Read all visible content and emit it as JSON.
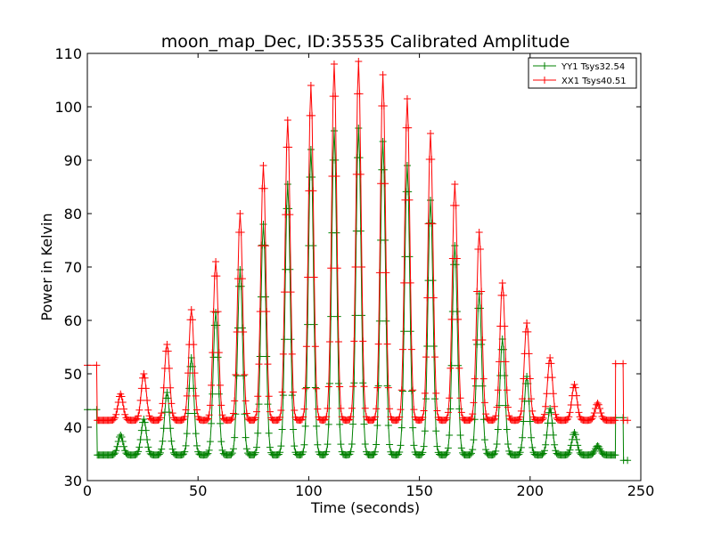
{
  "chart_data": {
    "type": "line",
    "title": "moon_map_Dec, ID:35535 Calibrated Amplitude",
    "xlabel": "Time (seconds)",
    "ylabel": "Power in Kelvin",
    "xlim": [
      0,
      250
    ],
    "ylim": [
      30,
      110
    ],
    "xticks": [
      "0",
      "50",
      "100",
      "150",
      "200",
      "250"
    ],
    "yticks": [
      "30",
      "40",
      "50",
      "60",
      "70",
      "80",
      "90",
      "100",
      "110"
    ],
    "grid": false,
    "legend": "top-right",
    "series": [
      {
        "name": "YY1 Tsys32.54",
        "color": "#008000",
        "baseline": 34.8,
        "pre_level": 43.3,
        "post_level": 41.8,
        "end_level": 33.8,
        "peaks": [
          {
            "x": 15,
            "y": 38.5
          },
          {
            "x": 25.5,
            "y": 41.5
          },
          {
            "x": 36,
            "y": 46.5
          },
          {
            "x": 47,
            "y": 53
          },
          {
            "x": 58,
            "y": 61.5
          },
          {
            "x": 69,
            "y": 69.5
          },
          {
            "x": 79.5,
            "y": 78
          },
          {
            "x": 90.5,
            "y": 85.5
          },
          {
            "x": 101,
            "y": 92
          },
          {
            "x": 111.5,
            "y": 95.5
          },
          {
            "x": 122.5,
            "y": 96
          },
          {
            "x": 133.5,
            "y": 93.5
          },
          {
            "x": 144.5,
            "y": 89
          },
          {
            "x": 155,
            "y": 82.5
          },
          {
            "x": 166,
            "y": 74
          },
          {
            "x": 177,
            "y": 65
          },
          {
            "x": 187.5,
            "y": 56.5
          },
          {
            "x": 198.5,
            "y": 49.5
          },
          {
            "x": 209,
            "y": 43.5
          },
          {
            "x": 220,
            "y": 39
          },
          {
            "x": 230.5,
            "y": 36.5
          }
        ]
      },
      {
        "name": "XX1 Tsys40.51",
        "color": "#ff0000",
        "baseline": 41.3,
        "pre_level": 51.6,
        "post_level": 51.9,
        "end_level": 41.3,
        "peaks": [
          {
            "x": 15,
            "y": 46.2
          },
          {
            "x": 25.5,
            "y": 50
          },
          {
            "x": 36,
            "y": 55.5
          },
          {
            "x": 47,
            "y": 62
          },
          {
            "x": 58,
            "y": 71
          },
          {
            "x": 69,
            "y": 80
          },
          {
            "x": 79.5,
            "y": 89
          },
          {
            "x": 90.5,
            "y": 97.5
          },
          {
            "x": 101,
            "y": 104
          },
          {
            "x": 111.5,
            "y": 108
          },
          {
            "x": 122.5,
            "y": 108.5
          },
          {
            "x": 133.5,
            "y": 106
          },
          {
            "x": 144.5,
            "y": 101.5
          },
          {
            "x": 155,
            "y": 95
          },
          {
            "x": 166,
            "y": 85.5
          },
          {
            "x": 177,
            "y": 76.5
          },
          {
            "x": 187.5,
            "y": 67
          },
          {
            "x": 198.5,
            "y": 59.5
          },
          {
            "x": 209,
            "y": 53
          },
          {
            "x": 220,
            "y": 48
          },
          {
            "x": 230.5,
            "y": 44.5
          }
        ]
      }
    ]
  }
}
